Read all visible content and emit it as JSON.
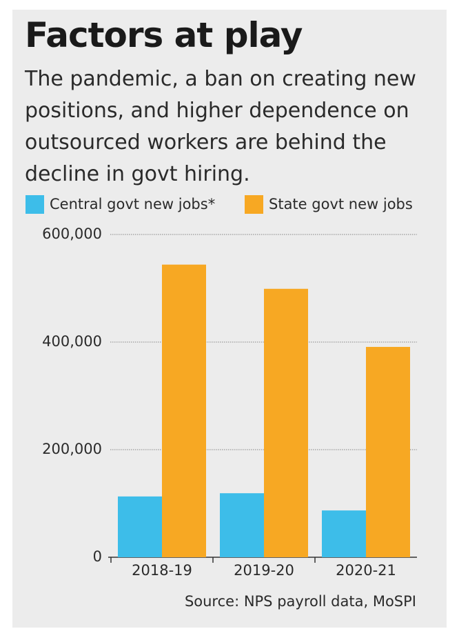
{
  "chart_data": {
    "type": "bar",
    "title": "Factors at play",
    "subtitle": "The pandemic, a ban on creating new positions, and higher dependence on outsourced workers are behind the decline in govt hiring.",
    "categories": [
      "2018-19",
      "2019-20",
      "2020-21"
    ],
    "series": [
      {
        "name": "Central govt new jobs*",
        "color": "#3dbde9",
        "values": [
          113000,
          119000,
          87000
        ]
      },
      {
        "name": "State govt new jobs",
        "color": "#f7a823",
        "values": [
          544000,
          499000,
          391000
        ]
      }
    ],
    "ylim": [
      0,
      600000
    ],
    "yticks": [
      0,
      {
        "value": 200000,
        "label": "200,000"
      },
      {
        "value": 400000,
        "label": "400,000"
      },
      {
        "value": 600000,
        "label": "600,000"
      }
    ],
    "grid": true,
    "source": "Source: NPS payroll data, MoSPI"
  }
}
